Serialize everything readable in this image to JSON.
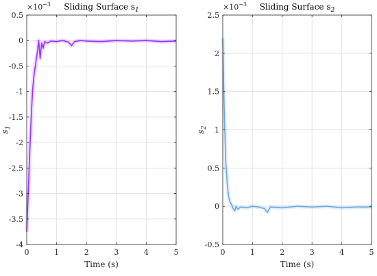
{
  "chart_data": [
    {
      "type": "line",
      "title": "Sliding Surface s",
      "title_sub": "1",
      "xlabel": "Time (s)",
      "ylabel": "s",
      "ylabel_sub": "1",
      "multiplier": "×10",
      "multiplier_exp": "−3",
      "xlim": [
        0,
        5
      ],
      "ylim": [
        -4,
        0.5
      ],
      "xticks": [
        0,
        1,
        2,
        3,
        4,
        5
      ],
      "xtick_labels": [
        "0",
        "1",
        "2",
        "3",
        "4",
        "5"
      ],
      "yticks": [
        0.5,
        0,
        -0.5,
        -1,
        -1.5,
        -2,
        -2.5,
        -3,
        -3.5,
        -4
      ],
      "ytick_labels": [
        "0.5",
        "0",
        "-0.5",
        "-1",
        "-1.5",
        "-2",
        "-2.5",
        "-3",
        "-3.5",
        "-4"
      ],
      "grid": true,
      "color": "#9b30ff",
      "series": [
        {
          "x": [
            0,
            0.05,
            0.1,
            0.15,
            0.2,
            0.25,
            0.3,
            0.35,
            0.4,
            0.45,
            0.5,
            0.55,
            0.6,
            0.7,
            0.8,
            1.0,
            1.2,
            1.4,
            1.5,
            1.6,
            1.8,
            2.0,
            2.5,
            3.0,
            3.5,
            4.0,
            4.5,
            5.0
          ],
          "y": [
            -3.75,
            -3.0,
            -2.2,
            -1.5,
            -0.95,
            -0.65,
            -0.45,
            -0.25,
            0.0,
            -0.35,
            -0.05,
            -0.15,
            -0.02,
            -0.05,
            -0.01,
            -0.02,
            0.0,
            -0.03,
            -0.1,
            -0.02,
            0.0,
            -0.01,
            -0.02,
            0.0,
            -0.01,
            0.0,
            -0.02,
            -0.01
          ]
        }
      ]
    },
    {
      "type": "line",
      "title": "Sliding Surface s",
      "title_sub": "2",
      "xlabel": "Time (s)",
      "ylabel": "s",
      "ylabel_sub": "2",
      "multiplier": "×10",
      "multiplier_exp": "−3",
      "xlim": [
        0,
        5
      ],
      "ylim": [
        -0.5,
        2.5
      ],
      "xticks": [
        0,
        1,
        2,
        3,
        4,
        5
      ],
      "xtick_labels": [
        "0",
        "1",
        "2",
        "3",
        "4",
        "5"
      ],
      "yticks": [
        2.5,
        2,
        1.5,
        1,
        0.5,
        0,
        -0.5
      ],
      "ytick_labels": [
        "2.5",
        "2",
        "1.5",
        "1",
        "0.5",
        "0",
        "-0.5"
      ],
      "grid": true,
      "color": "#6fa8e0",
      "series": [
        {
          "x": [
            0,
            0.03,
            0.06,
            0.1,
            0.15,
            0.2,
            0.25,
            0.3,
            0.35,
            0.4,
            0.45,
            0.5,
            0.6,
            0.8,
            1.0,
            1.2,
            1.4,
            1.5,
            1.6,
            2.0,
            2.5,
            3.0,
            3.5,
            4.0,
            4.5,
            5.0
          ],
          "y": [
            2.2,
            1.6,
            1.1,
            0.6,
            0.3,
            0.12,
            0.05,
            0.02,
            -0.03,
            -0.06,
            0.0,
            -0.04,
            -0.01,
            -0.02,
            0.0,
            -0.01,
            -0.03,
            -0.08,
            -0.01,
            -0.02,
            0.0,
            -0.01,
            0.0,
            -0.02,
            -0.01,
            -0.01
          ]
        }
      ]
    }
  ]
}
